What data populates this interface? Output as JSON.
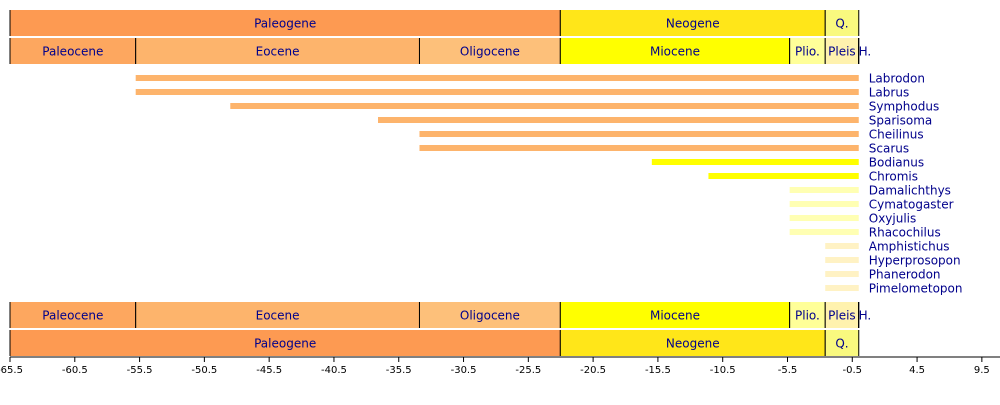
{
  "chart_data": {
    "type": "timeline",
    "eras": [
      {
        "name": "Paleogene",
        "start": -65.5,
        "end": -23.03,
        "color": "#FD9A52"
      },
      {
        "name": "Neogene",
        "start": -23.03,
        "end": -2.588,
        "color": "#FFE619"
      },
      {
        "name": "Q.",
        "start": -2.588,
        "end": 0,
        "color": "#F9F97F"
      }
    ],
    "epochs": [
      {
        "name": "Paleocene",
        "start": -65.5,
        "end": -55.8,
        "color": "#FDA75F"
      },
      {
        "name": "Eocene",
        "start": -55.8,
        "end": -33.9,
        "color": "#FDB46C"
      },
      {
        "name": "Oligocene",
        "start": -33.9,
        "end": -23.03,
        "color": "#FDC07A"
      },
      {
        "name": "Miocene",
        "start": -23.03,
        "end": -5.332,
        "color": "#FFFF00"
      },
      {
        "name": "Plio.",
        "start": -5.332,
        "end": -2.588,
        "color": "#FFFF99"
      },
      {
        "name": "Pleis",
        "start": -2.588,
        "end": -0.0117,
        "color": "#FFF2AE"
      },
      {
        "name": "H.",
        "start": -0.0117,
        "end": 0,
        "color": "#FEF2E0"
      }
    ],
    "taxa": [
      {
        "name": "Labrodon",
        "start": -55.8,
        "end": 0,
        "color": "#FDB46C"
      },
      {
        "name": "Labrus",
        "start": -55.8,
        "end": 0,
        "color": "#FDB46C"
      },
      {
        "name": "Symphodus",
        "start": -48.5,
        "end": 0,
        "color": "#FDB46C"
      },
      {
        "name": "Sparisoma",
        "start": -37.1,
        "end": 0,
        "color": "#FDB46C"
      },
      {
        "name": "Cheilinus",
        "start": -33.9,
        "end": 0,
        "color": "#FDB46C"
      },
      {
        "name": "Scarus",
        "start": -33.9,
        "end": 0,
        "color": "#FDB46C"
      },
      {
        "name": "Bodianus",
        "start": -15.97,
        "end": 0,
        "color": "#FFFF00"
      },
      {
        "name": "Chromis",
        "start": -11.6,
        "end": 0,
        "color": "#FFFF00"
      },
      {
        "name": "Damalichthys",
        "start": -5.332,
        "end": 0,
        "color": "#FFFFB3"
      },
      {
        "name": "Cymatogaster",
        "start": -5.332,
        "end": 0,
        "color": "#FFFFB3"
      },
      {
        "name": "Oxyjulis",
        "start": -5.332,
        "end": 0,
        "color": "#FFFFB3"
      },
      {
        "name": "Rhacochilus",
        "start": -5.332,
        "end": 0,
        "color": "#FFFFB3"
      },
      {
        "name": "Amphistichus",
        "start": -2.588,
        "end": 0,
        "color": "#FFF2C4"
      },
      {
        "name": "Hyperprosopon",
        "start": -2.588,
        "end": 0,
        "color": "#FFF2C4"
      },
      {
        "name": "Phanerodon",
        "start": -2.588,
        "end": 0,
        "color": "#FFF2C4"
      },
      {
        "name": "Pimelometopon",
        "start": -2.588,
        "end": 0,
        "color": "#FFF2C4"
      }
    ],
    "xlim": [
      -65.5,
      10.9
    ],
    "xticks": [
      -65.5,
      -60.5,
      -55.5,
      -50.5,
      -45.5,
      -40.5,
      -35.5,
      -30.5,
      -25.5,
      -20.5,
      -15.5,
      -10.5,
      -5.5,
      -0.5,
      4.5,
      9.5
    ]
  }
}
